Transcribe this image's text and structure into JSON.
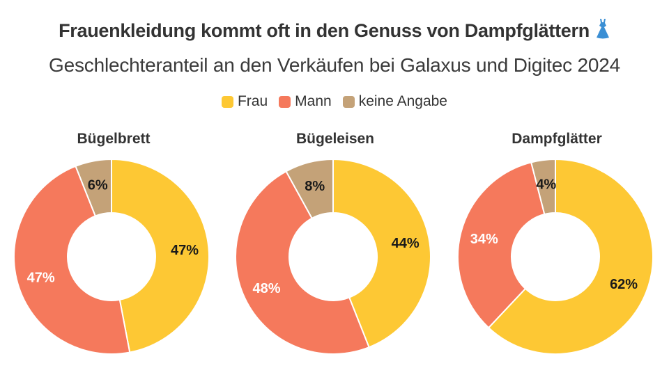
{
  "header": {
    "title": "Frauenkleidung kommt oft in den Genuss von Dampfglättern",
    "title_icon": "dress-icon",
    "subtitle": "Geschlechteranteil an den Verkäufen bei Galaxus und Digitec 2024"
  },
  "legend": [
    {
      "label": "Frau",
      "color": "#FDC834"
    },
    {
      "label": "Mann",
      "color": "#F5795C"
    },
    {
      "label": "keine Angabe",
      "color": "#C4A278"
    }
  ],
  "chart_data": [
    {
      "type": "pie",
      "title": "Bügelbrett",
      "categories": [
        "Frau",
        "Mann",
        "keine Angabe"
      ],
      "values": [
        47,
        47,
        6
      ],
      "labels": [
        "47%",
        "47%",
        "6%"
      ]
    },
    {
      "type": "pie",
      "title": "Bügeleisen",
      "categories": [
        "Frau",
        "Mann",
        "keine Angabe"
      ],
      "values": [
        44,
        48,
        8
      ],
      "labels": [
        "44%",
        "48%",
        "8%"
      ]
    },
    {
      "type": "pie",
      "title": "Dampfglätter",
      "categories": [
        "Frau",
        "Mann",
        "keine Angabe"
      ],
      "values": [
        62,
        34,
        4
      ],
      "labels": [
        "62%",
        "34%",
        "4%"
      ]
    }
  ]
}
